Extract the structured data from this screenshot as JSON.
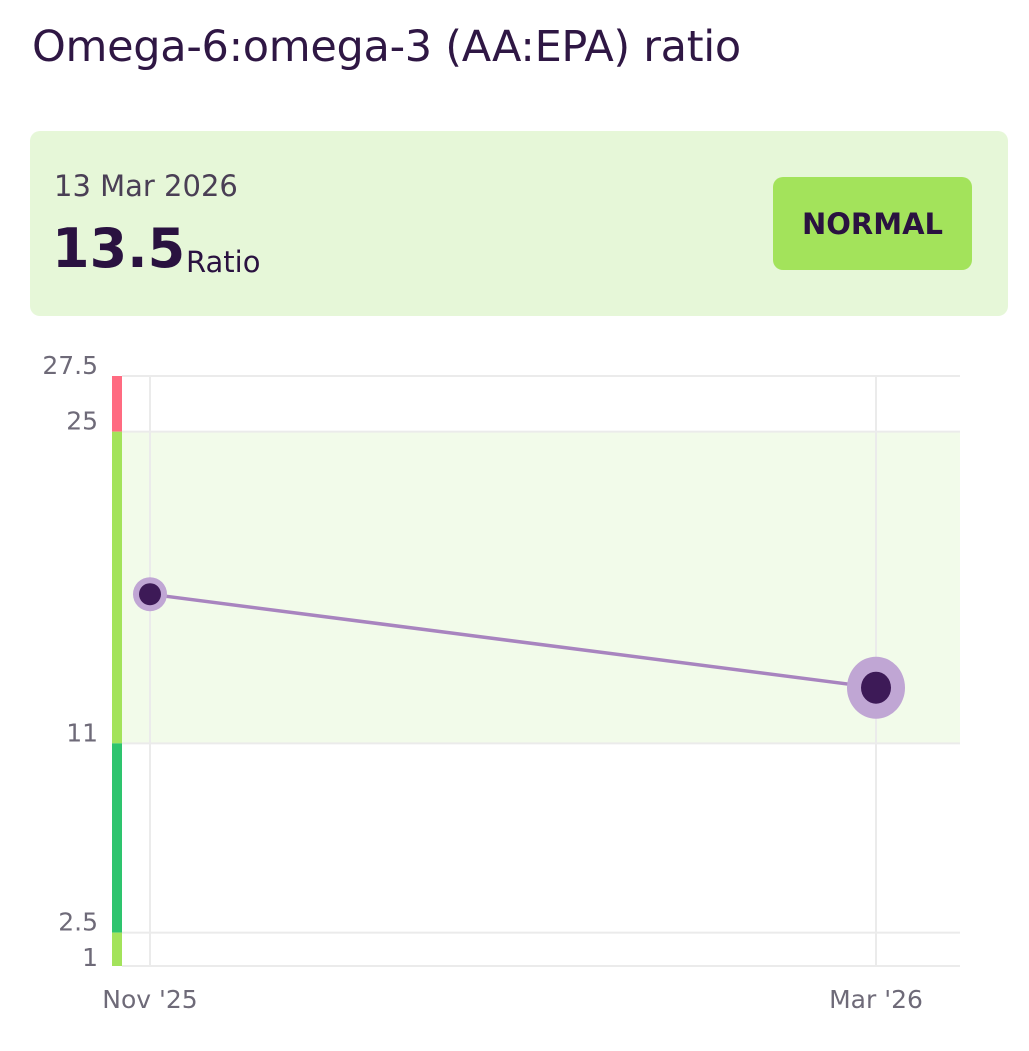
{
  "header": {
    "title": "Omega-6:omega-3 (AA:EPA) ratio"
  },
  "latest": {
    "date": "13 Mar 2026",
    "value": "13.5",
    "unit": "Ratio",
    "status": "NORMAL"
  },
  "colors": {
    "accent": "#3d1a57",
    "line": "#a884bf",
    "halo": "#c0a6d4",
    "normal_band": "#a3e35b",
    "optimal_band": "#2ec46e",
    "high_band": "#ff6b81",
    "normal_fill": "#f2fbea",
    "card_bg": "#e6f7d8"
  },
  "chart_data": {
    "type": "line",
    "x": [
      "Nov '25",
      "Mar '26"
    ],
    "values": [
      17.7,
      13.5
    ],
    "ylim": [
      1,
      27.5
    ],
    "yticks": [
      "27.5",
      "25",
      "11",
      "2.5",
      "1"
    ],
    "ytick_values": [
      27.5,
      25,
      11,
      2.5,
      1
    ],
    "ranges": [
      {
        "from": 25,
        "to": 27.5,
        "color": "#ff6b81"
      },
      {
        "from": 11,
        "to": 25,
        "color": "#a3e35b"
      },
      {
        "from": 2.5,
        "to": 11,
        "color": "#2ec46e"
      },
      {
        "from": 1,
        "to": 2.5,
        "color": "#a3e35b"
      }
    ],
    "shaded_range": [
      11,
      25
    ],
    "grid": true
  }
}
